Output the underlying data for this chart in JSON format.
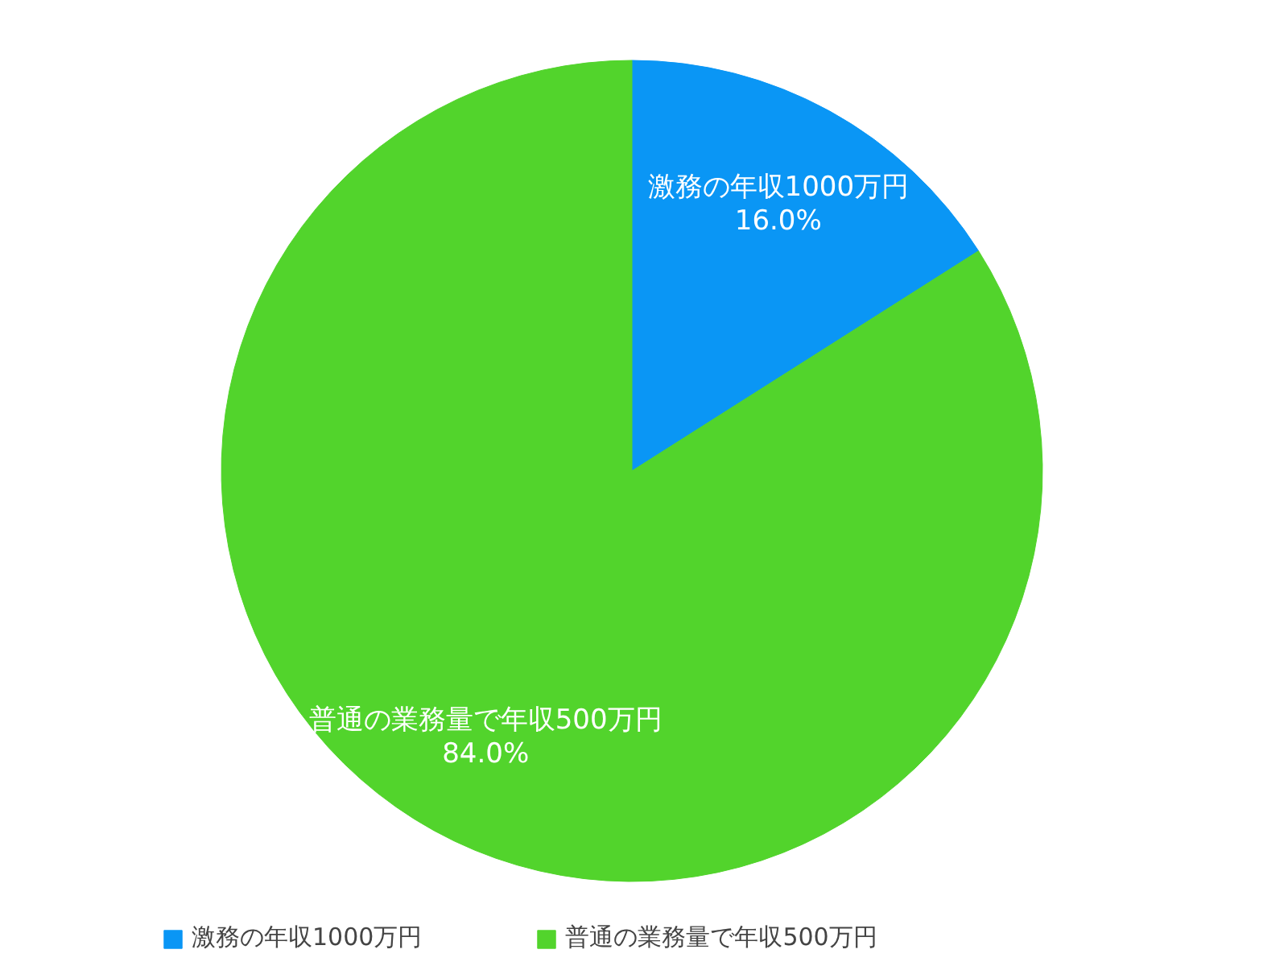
{
  "chart_data": {
    "type": "pie",
    "categories": [
      "激務の年収1000万円",
      "普通の業務量で年収500万円"
    ],
    "values": [
      16.0,
      84.0
    ],
    "colors": [
      "#0a96f5",
      "#52d42c"
    ],
    "value_labels": [
      "16.0%",
      "84.0%"
    ],
    "legend": "bottom"
  }
}
